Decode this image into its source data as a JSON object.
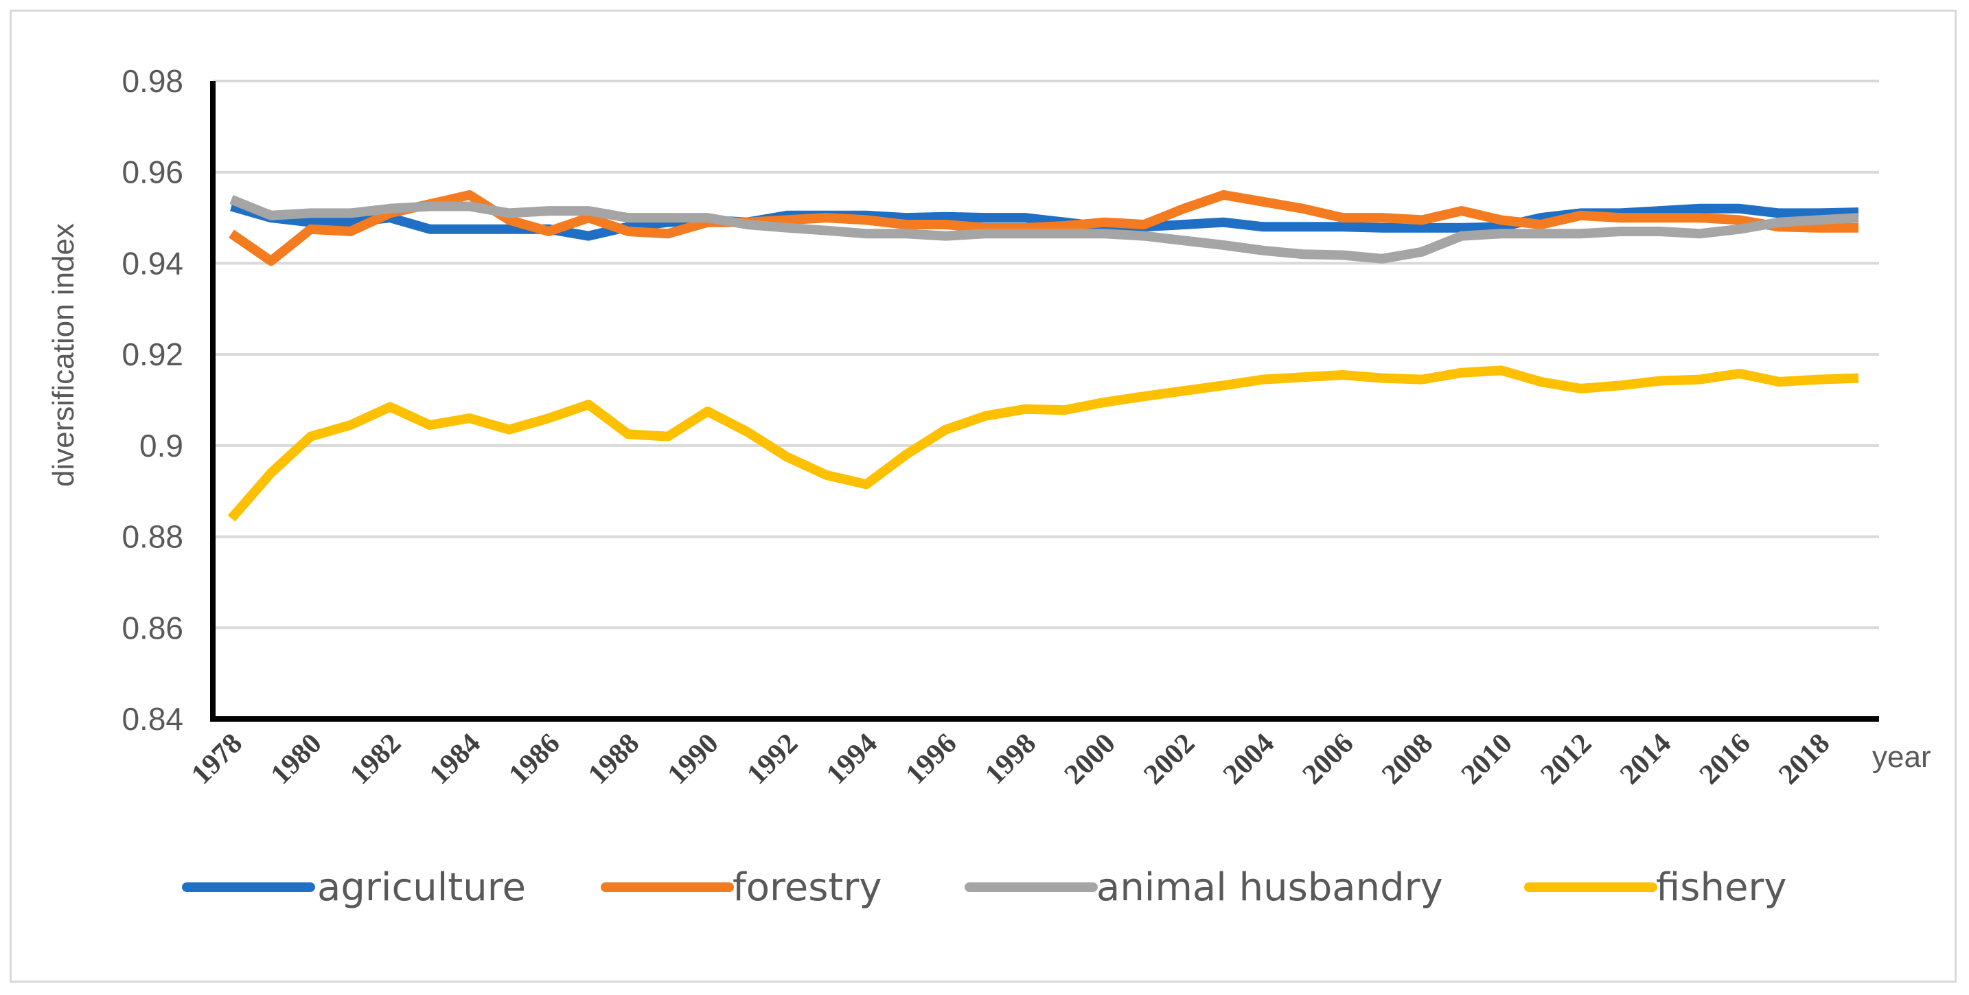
{
  "chart_data": {
    "type": "line",
    "title": "",
    "xlabel": "year",
    "ylabel": "diversification index",
    "ylim": [
      0.84,
      0.98
    ],
    "yticks": [
      "0.84",
      "0.86",
      "0.88",
      "0.9",
      "0.92",
      "0.94",
      "0.96",
      "0.98"
    ],
    "yticks_values": [
      0.84,
      0.86,
      0.88,
      0.9,
      0.92,
      0.94,
      0.96,
      0.98
    ],
    "x": [
      1978,
      1979,
      1980,
      1981,
      1982,
      1983,
      1984,
      1985,
      1986,
      1987,
      1988,
      1989,
      1990,
      1991,
      1992,
      1993,
      1994,
      1995,
      1996,
      1997,
      1998,
      1999,
      2000,
      2001,
      2002,
      2003,
      2004,
      2005,
      2006,
      2007,
      2008,
      2009,
      2010,
      2011,
      2012,
      2013,
      2014,
      2015,
      2016,
      2017,
      2018,
      2019
    ],
    "xtick_labels": [
      "1978",
      "1980",
      "1982",
      "1984",
      "1986",
      "1988",
      "1990",
      "1992",
      "1994",
      "1996",
      "1998",
      "2000",
      "2002",
      "2004",
      "2006",
      "2008",
      "2010",
      "2012",
      "2014",
      "2016",
      "2018"
    ],
    "grid": true,
    "legend_position": "bottom",
    "series": [
      {
        "name": "agriculture",
        "color": "#1f6fc5",
        "values": [
          0.9525,
          0.95,
          0.949,
          0.949,
          0.95,
          0.9475,
          0.9475,
          0.9475,
          0.9475,
          0.946,
          0.948,
          0.949,
          0.9495,
          0.949,
          0.9505,
          0.9505,
          0.9505,
          0.95,
          0.9502,
          0.95,
          0.95,
          0.949,
          0.948,
          0.948,
          0.9485,
          0.949,
          0.948,
          0.948,
          0.948,
          0.9478,
          0.9478,
          0.9478,
          0.948,
          0.95,
          0.951,
          0.951,
          0.9515,
          0.952,
          0.952,
          0.951,
          0.951,
          0.9512
        ]
      },
      {
        "name": "forestry",
        "color": "#f47b20",
        "values": [
          0.9465,
          0.9405,
          0.9475,
          0.947,
          0.951,
          0.953,
          0.955,
          0.9495,
          0.947,
          0.95,
          0.947,
          0.9465,
          0.949,
          0.949,
          0.9495,
          0.95,
          0.9495,
          0.9485,
          0.9485,
          0.9478,
          0.9478,
          0.9482,
          0.949,
          0.9485,
          0.952,
          0.955,
          0.9535,
          0.952,
          0.95,
          0.95,
          0.9495,
          0.9515,
          0.9495,
          0.9485,
          0.9505,
          0.95,
          0.95,
          0.95,
          0.9495,
          0.948,
          0.9478,
          0.9478
        ]
      },
      {
        "name": "animal husbandry",
        "color": "#a5a5a5",
        "values": [
          0.954,
          0.9505,
          0.951,
          0.951,
          0.952,
          0.9525,
          0.9525,
          0.951,
          0.9515,
          0.9515,
          0.95,
          0.95,
          0.95,
          0.9485,
          0.9478,
          0.9472,
          0.9465,
          0.9465,
          0.946,
          0.9465,
          0.9465,
          0.9465,
          0.9465,
          0.946,
          0.945,
          0.944,
          0.9428,
          0.942,
          0.9418,
          0.941,
          0.9425,
          0.946,
          0.9465,
          0.9465,
          0.9465,
          0.947,
          0.947,
          0.9465,
          0.9475,
          0.949,
          0.9495,
          0.95
        ]
      },
      {
        "name": "fishery",
        "color": "#ffc000",
        "values": [
          0.884,
          0.894,
          0.902,
          0.9045,
          0.9085,
          0.9045,
          0.906,
          0.9035,
          0.906,
          0.909,
          0.9025,
          0.902,
          0.9075,
          0.903,
          0.8975,
          0.8935,
          0.8915,
          0.898,
          0.9035,
          0.9065,
          0.908,
          0.9078,
          0.9095,
          0.9108,
          0.912,
          0.9132,
          0.9145,
          0.915,
          0.9155,
          0.9148,
          0.9145,
          0.916,
          0.9165,
          0.914,
          0.9125,
          0.9132,
          0.9142,
          0.9145,
          0.9158,
          0.914,
          0.9145,
          0.9148
        ]
      }
    ]
  }
}
